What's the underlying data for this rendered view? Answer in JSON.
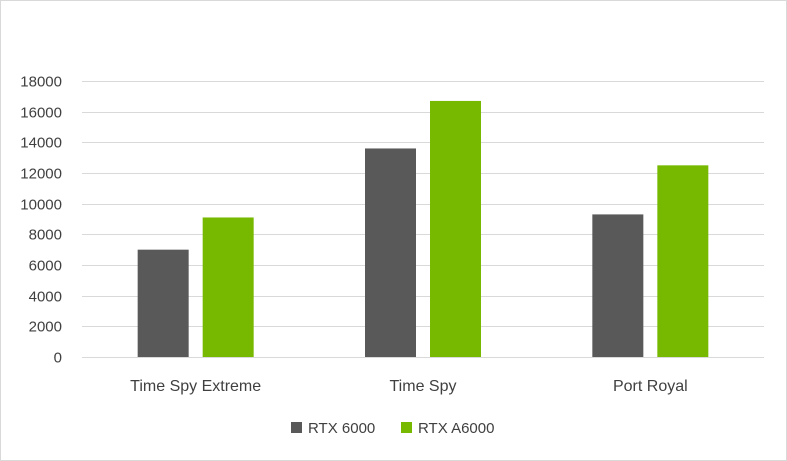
{
  "chart_data": {
    "type": "bar",
    "title": "",
    "xlabel": "",
    "ylabel": "",
    "categories": [
      "Time Spy Extreme",
      "Time Spy",
      "Port Royal"
    ],
    "series": [
      {
        "name": "RTX 6000",
        "color": "#595959",
        "values": [
          7000,
          13600,
          9300
        ]
      },
      {
        "name": "RTX A6000",
        "color": "#76b900",
        "values": [
          9100,
          16700,
          12500
        ]
      }
    ],
    "ylim": [
      0,
      18000
    ],
    "yticks": [
      0,
      2000,
      4000,
      6000,
      8000,
      10000,
      12000,
      14000,
      16000,
      18000
    ],
    "grid": true,
    "legend_position": "bottom"
  }
}
